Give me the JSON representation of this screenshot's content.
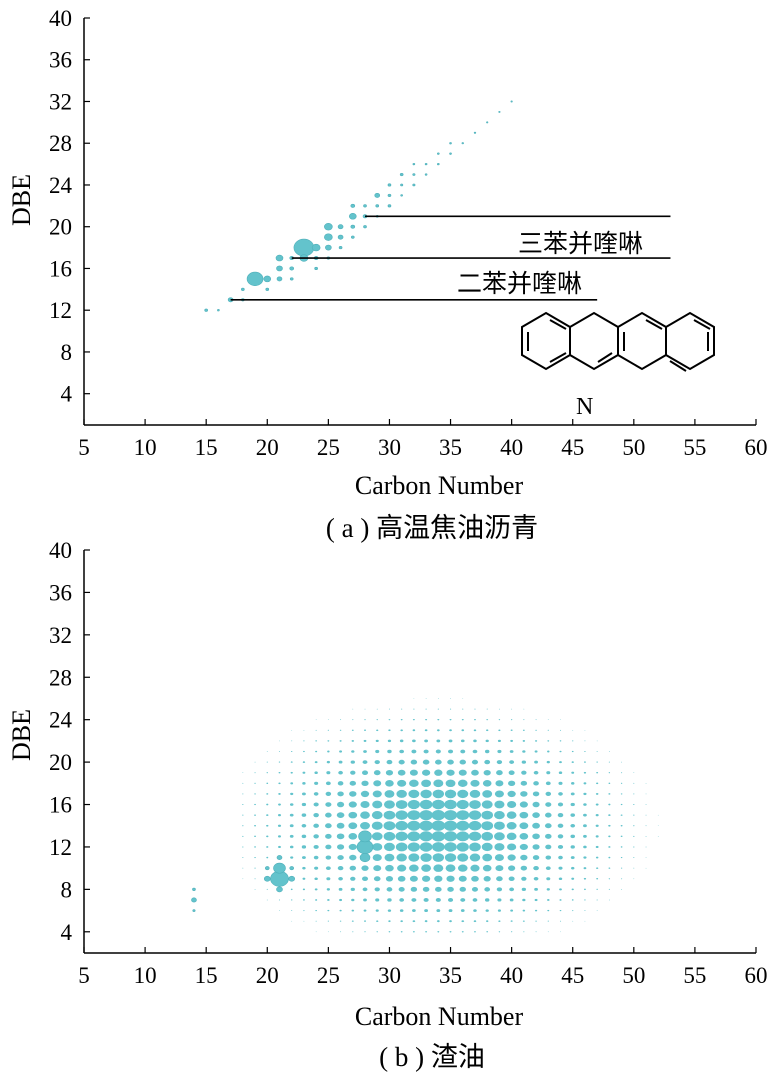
{
  "colors": {
    "bubble": "#63c3cc",
    "bubble_edge": "#4fb0ba",
    "axis": "#000000"
  },
  "chart_data": [
    {
      "type": "scatter",
      "title": "",
      "caption": "( a ) 高温焦油沥青",
      "xlabel": "Carbon Number",
      "ylabel": "DBE",
      "xlim": [
        5,
        60
      ],
      "ylim": [
        1,
        40
      ],
      "x_ticks": [
        5,
        10,
        15,
        20,
        25,
        30,
        35,
        40,
        45,
        50,
        55,
        60
      ],
      "y_ticks": [
        4,
        8,
        12,
        16,
        20,
        24,
        28,
        32,
        36,
        40
      ],
      "annotations": [
        {
          "text": "三苯并喹啉",
          "line": {
            "x_start": 28,
            "x_end": 53,
            "y": 21
          }
        },
        {
          "text": "二苯并喹啉",
          "line": {
            "x_start": 22,
            "x_end": 53,
            "y": 17
          }
        },
        {
          "text": "",
          "line": {
            "x_start": 17,
            "x_end": 47,
            "y": 13
          }
        }
      ],
      "structure_label": "N",
      "points": [
        {
          "x": 15,
          "y": 12,
          "s": 1.5
        },
        {
          "x": 16,
          "y": 12,
          "s": 1
        },
        {
          "x": 17,
          "y": 13,
          "s": 2.5
        },
        {
          "x": 18,
          "y": 13,
          "s": 1.5
        },
        {
          "x": 18,
          "y": 14,
          "s": 1.5
        },
        {
          "x": 19,
          "y": 15,
          "s": 8
        },
        {
          "x": 20,
          "y": 15,
          "s": 3.5
        },
        {
          "x": 20,
          "y": 14,
          "s": 1.5
        },
        {
          "x": 21,
          "y": 15,
          "s": 2.5
        },
        {
          "x": 21,
          "y": 16,
          "s": 3
        },
        {
          "x": 21,
          "y": 17,
          "s": 3.5
        },
        {
          "x": 22,
          "y": 16,
          "s": 2
        },
        {
          "x": 22,
          "y": 17,
          "s": 2
        },
        {
          "x": 22,
          "y": 15,
          "s": 1.5
        },
        {
          "x": 23,
          "y": 18,
          "s": 10
        },
        {
          "x": 23,
          "y": 17,
          "s": 4
        },
        {
          "x": 24,
          "y": 18,
          "s": 4
        },
        {
          "x": 24,
          "y": 17,
          "s": 2
        },
        {
          "x": 24,
          "y": 16,
          "s": 1.5
        },
        {
          "x": 25,
          "y": 19,
          "s": 4
        },
        {
          "x": 25,
          "y": 18,
          "s": 3
        },
        {
          "x": 25,
          "y": 20,
          "s": 4
        },
        {
          "x": 25,
          "y": 17,
          "s": 1.5
        },
        {
          "x": 26,
          "y": 19,
          "s": 2.5
        },
        {
          "x": 26,
          "y": 20,
          "s": 2.5
        },
        {
          "x": 26,
          "y": 18,
          "s": 1.5
        },
        {
          "x": 27,
          "y": 21,
          "s": 3.5
        },
        {
          "x": 27,
          "y": 20,
          "s": 2
        },
        {
          "x": 27,
          "y": 22,
          "s": 2
        },
        {
          "x": 27,
          "y": 19,
          "s": 1.5
        },
        {
          "x": 28,
          "y": 21,
          "s": 2
        },
        {
          "x": 28,
          "y": 20,
          "s": 1.5
        },
        {
          "x": 28,
          "y": 22,
          "s": 1.5
        },
        {
          "x": 29,
          "y": 23,
          "s": 2.5
        },
        {
          "x": 29,
          "y": 22,
          "s": 1.5
        },
        {
          "x": 29,
          "y": 21,
          "s": 1.2
        },
        {
          "x": 30,
          "y": 22,
          "s": 1.5
        },
        {
          "x": 30,
          "y": 23,
          "s": 1.5
        },
        {
          "x": 30,
          "y": 24,
          "s": 1.5
        },
        {
          "x": 31,
          "y": 25,
          "s": 1.5
        },
        {
          "x": 31,
          "y": 24,
          "s": 1.2
        },
        {
          "x": 31,
          "y": 23,
          "s": 1
        },
        {
          "x": 32,
          "y": 24,
          "s": 1.2
        },
        {
          "x": 32,
          "y": 25,
          "s": 1.2
        },
        {
          "x": 32,
          "y": 26,
          "s": 1
        },
        {
          "x": 33,
          "y": 26,
          "s": 1
        },
        {
          "x": 33,
          "y": 25,
          "s": 1
        },
        {
          "x": 34,
          "y": 26,
          "s": 1
        },
        {
          "x": 34,
          "y": 27,
          "s": 1
        },
        {
          "x": 35,
          "y": 27,
          "s": 1
        },
        {
          "x": 35,
          "y": 28,
          "s": 1
        },
        {
          "x": 36,
          "y": 28,
          "s": 0.9
        },
        {
          "x": 37,
          "y": 29,
          "s": 0.9
        },
        {
          "x": 38,
          "y": 30,
          "s": 0.8
        },
        {
          "x": 39,
          "y": 31,
          "s": 0.8
        },
        {
          "x": 40,
          "y": 32,
          "s": 0.8
        }
      ]
    },
    {
      "type": "scatter",
      "title": "",
      "caption": "( b ) 渣油",
      "xlabel": "Carbon Number",
      "ylabel": "DBE",
      "xlim": [
        5,
        60
      ],
      "ylim": [
        2,
        40
      ],
      "x_ticks": [
        5,
        10,
        15,
        20,
        25,
        30,
        35,
        40,
        45,
        50,
        55,
        60
      ],
      "y_ticks": [
        4,
        8,
        12,
        16,
        20,
        24,
        28,
        32,
        36,
        40
      ],
      "grid_model": {
        "x_range": [
          18,
          58
        ],
        "y_range": [
          4,
          26
        ],
        "center_x": 34,
        "center_y": 14,
        "sigma_x": 7.5,
        "sigma_y": 5,
        "max_size": 6.5
      },
      "points": [
        {
          "x": 14,
          "y": 7,
          "s": 2.5
        },
        {
          "x": 14,
          "y": 8,
          "s": 1.5
        },
        {
          "x": 14,
          "y": 6,
          "s": 1.2
        },
        {
          "x": 21,
          "y": 9,
          "s": 9
        },
        {
          "x": 21,
          "y": 10,
          "s": 6
        },
        {
          "x": 20,
          "y": 9,
          "s": 3
        },
        {
          "x": 22,
          "y": 9,
          "s": 3
        },
        {
          "x": 21,
          "y": 8,
          "s": 3
        },
        {
          "x": 21,
          "y": 11,
          "s": 2.5
        },
        {
          "x": 20,
          "y": 10,
          "s": 2
        },
        {
          "x": 22,
          "y": 10,
          "s": 2
        },
        {
          "x": 28,
          "y": 12,
          "s": 8
        },
        {
          "x": 28,
          "y": 13,
          "s": 6.5
        },
        {
          "x": 28,
          "y": 11,
          "s": 5
        }
      ]
    }
  ]
}
